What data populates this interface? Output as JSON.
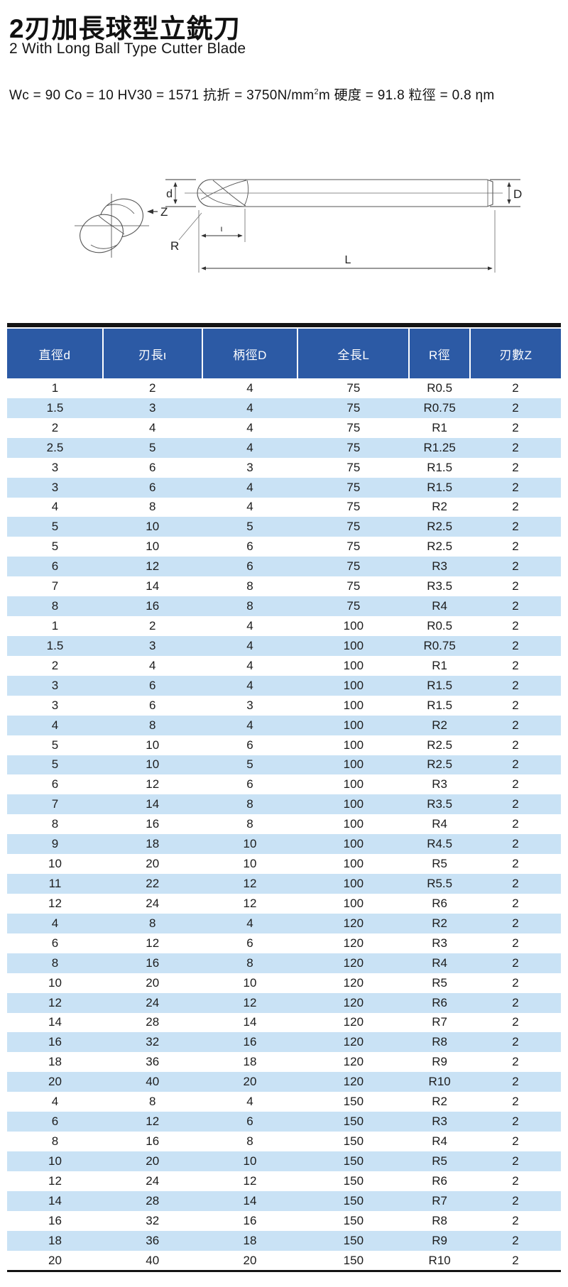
{
  "header": {
    "title_zh": "2刃加長球型立銑刀",
    "title_en": "2 With Long Ball Type Cutter Blade",
    "spec": {
      "before_sup": "Wc = 90 Co = 10 HV30 = 1571 抗折 = 3750N/mm",
      "sup": "2",
      "after_sup": "m 硬度 = 91.8 粒徑 = 0.8 ηm"
    }
  },
  "diagram": {
    "label_ball_dia": "d",
    "label_shank_dia": "D",
    "label_radius": "R",
    "label_overall_length": "L",
    "label_flute_length": "ι",
    "label_flutes": "Z"
  },
  "table": {
    "columns": [
      "直徑d",
      "刃長ι",
      "柄徑D",
      "全長L",
      "R徑",
      "刃數Z"
    ],
    "rows": [
      [
        "1",
        "2",
        "4",
        "75",
        "R0.5",
        "2"
      ],
      [
        "1.5",
        "3",
        "4",
        "75",
        "R0.75",
        "2"
      ],
      [
        "2",
        "4",
        "4",
        "75",
        "R1",
        "2"
      ],
      [
        "2.5",
        "5",
        "4",
        "75",
        "R1.25",
        "2"
      ],
      [
        "3",
        "6",
        "3",
        "75",
        "R1.5",
        "2"
      ],
      [
        "3",
        "6",
        "4",
        "75",
        "R1.5",
        "2"
      ],
      [
        "4",
        "8",
        "4",
        "75",
        "R2",
        "2"
      ],
      [
        "5",
        "10",
        "5",
        "75",
        "R2.5",
        "2"
      ],
      [
        "5",
        "10",
        "6",
        "75",
        "R2.5",
        "2"
      ],
      [
        "6",
        "12",
        "6",
        "75",
        "R3",
        "2"
      ],
      [
        "7",
        "14",
        "8",
        "75",
        "R3.5",
        "2"
      ],
      [
        "8",
        "16",
        "8",
        "75",
        "R4",
        "2"
      ],
      [
        "1",
        "2",
        "4",
        "100",
        "R0.5",
        "2"
      ],
      [
        "1.5",
        "3",
        "4",
        "100",
        "R0.75",
        "2"
      ],
      [
        "2",
        "4",
        "4",
        "100",
        "R1",
        "2"
      ],
      [
        "3",
        "6",
        "4",
        "100",
        "R1.5",
        "2"
      ],
      [
        "3",
        "6",
        "3",
        "100",
        "R1.5",
        "2"
      ],
      [
        "4",
        "8",
        "4",
        "100",
        "R2",
        "2"
      ],
      [
        "5",
        "10",
        "6",
        "100",
        "R2.5",
        "2"
      ],
      [
        "5",
        "10",
        "5",
        "100",
        "R2.5",
        "2"
      ],
      [
        "6",
        "12",
        "6",
        "100",
        "R3",
        "2"
      ],
      [
        "7",
        "14",
        "8",
        "100",
        "R3.5",
        "2"
      ],
      [
        "8",
        "16",
        "8",
        "100",
        "R4",
        "2"
      ],
      [
        "9",
        "18",
        "10",
        "100",
        "R4.5",
        "2"
      ],
      [
        "10",
        "20",
        "10",
        "100",
        "R5",
        "2"
      ],
      [
        "11",
        "22",
        "12",
        "100",
        "R5.5",
        "2"
      ],
      [
        "12",
        "24",
        "12",
        "100",
        "R6",
        "2"
      ],
      [
        "4",
        "8",
        "4",
        "120",
        "R2",
        "2"
      ],
      [
        "6",
        "12",
        "6",
        "120",
        "R3",
        "2"
      ],
      [
        "8",
        "16",
        "8",
        "120",
        "R4",
        "2"
      ],
      [
        "10",
        "20",
        "10",
        "120",
        "R5",
        "2"
      ],
      [
        "12",
        "24",
        "12",
        "120",
        "R6",
        "2"
      ],
      [
        "14",
        "28",
        "14",
        "120",
        "R7",
        "2"
      ],
      [
        "16",
        "32",
        "16",
        "120",
        "R8",
        "2"
      ],
      [
        "18",
        "36",
        "18",
        "120",
        "R9",
        "2"
      ],
      [
        "20",
        "40",
        "20",
        "120",
        "R10",
        "2"
      ],
      [
        "4",
        "8",
        "4",
        "150",
        "R2",
        "2"
      ],
      [
        "6",
        "12",
        "6",
        "150",
        "R3",
        "2"
      ],
      [
        "8",
        "16",
        "8",
        "150",
        "R4",
        "2"
      ],
      [
        "10",
        "20",
        "10",
        "150",
        "R5",
        "2"
      ],
      [
        "12",
        "24",
        "12",
        "150",
        "R6",
        "2"
      ],
      [
        "14",
        "28",
        "14",
        "150",
        "R7",
        "2"
      ],
      [
        "16",
        "32",
        "16",
        "150",
        "R8",
        "2"
      ],
      [
        "18",
        "36",
        "18",
        "150",
        "R9",
        "2"
      ],
      [
        "20",
        "40",
        "20",
        "150",
        "R10",
        "2"
      ]
    ]
  },
  "colors": {
    "header_bg": "#2c5aa5",
    "alt_row_bg": "#c9e2f5",
    "rule": "#141414"
  }
}
